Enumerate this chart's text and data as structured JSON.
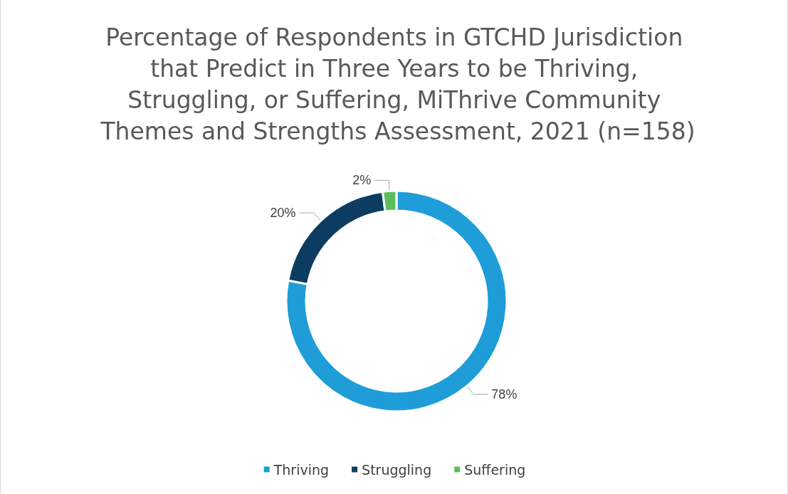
{
  "chart_data": {
    "type": "donut",
    "title": "Percentage of Respondents in GTCHD Jurisdiction that Predict in Three Years to be Thriving, Struggling, or Suffering, MiThrive Community Themes and Strengths Assessment, 2021 (n=158)",
    "categories": [
      "Thriving",
      "Struggling",
      "Suffering"
    ],
    "values": [
      78,
      20,
      2
    ],
    "value_labels": [
      "78%",
      "20%",
      "2%"
    ],
    "colors": [
      "#1f9dd9",
      "#0d3c61",
      "#5cbf5c"
    ],
    "legend": "bottom"
  }
}
